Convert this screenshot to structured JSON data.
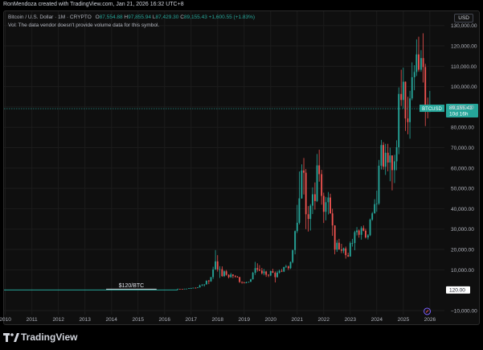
{
  "attribution": "RonMendoza created with TradingView.com, Jan 21, 2026 16:32 UTC+8",
  "legend": {
    "symbol": "Bitcoin / U.S. Dollar · 1M · CRYPTO",
    "open_label": "O",
    "open": "87,554.88",
    "high_label": "H",
    "high": "97,855.94",
    "low_label": "L",
    "low": "87,429.30",
    "close_label": "C",
    "close": "89,155.43",
    "change": "+1,600.55 (+1.83%)",
    "volume_note": "Vol: The data vendor doesn't provide volume data for this symbol."
  },
  "currency": "USD",
  "footer_brand": "TradingView",
  "colors": {
    "up": "#26a69a",
    "down": "#ef5350",
    "price_line": "#26a69a",
    "background": "#0f0f0f"
  },
  "chart_data": {
    "type": "candlestick",
    "symbol": "BTCUSD",
    "interval": "1M",
    "x_labels": [
      "2010",
      "2011",
      "2012",
      "2013",
      "2014",
      "2015",
      "2016",
      "2017",
      "2018",
      "2019",
      "2020",
      "2021",
      "2022",
      "2023",
      "2024",
      "2025",
      "2026"
    ],
    "y_ticks": [
      -10000,
      10000,
      20000,
      30000,
      40000,
      50000,
      60000,
      70000,
      80000,
      90000,
      100000,
      110000,
      120000,
      130000
    ],
    "y_tick_labels": [
      "−10,000.00",
      "10,000.00",
      "20,000.00",
      "30,000.00",
      "40,000.00",
      "50,000.00",
      "60,000.00",
      "70,000.00",
      "80,000.00",
      "90,000.00",
      "100,000.00",
      "110,000.00",
      "120,000.00",
      "130,000.00"
    ],
    "ylim": [
      -12000,
      137000
    ],
    "xlim": [
      2009.95,
      2026.55
    ],
    "last_price": 89155.43,
    "last_price_label": "BTCUSD",
    "last_price_text": "89,155.43",
    "countdown": "10d 16h",
    "marker_value": 120,
    "marker_text": "120.00",
    "annotation": {
      "text": "$120/BTC",
      "x": [
        2013.8,
        2015.7
      ],
      "y": 120
    },
    "candles": [
      {
        "t": 2016.5,
        "o": 640,
        "h": 780,
        "l": 620,
        "c": 650
      },
      {
        "t": 2016.58,
        "o": 650,
        "h": 670,
        "l": 560,
        "c": 620
      },
      {
        "t": 2016.67,
        "o": 620,
        "h": 640,
        "l": 600,
        "c": 610
      },
      {
        "t": 2016.75,
        "o": 610,
        "h": 720,
        "l": 600,
        "c": 700
      },
      {
        "t": 2016.83,
        "o": 700,
        "h": 750,
        "l": 690,
        "c": 740
      },
      {
        "t": 2016.92,
        "o": 740,
        "h": 980,
        "l": 730,
        "c": 960
      },
      {
        "t": 2017.0,
        "o": 960,
        "h": 1150,
        "l": 760,
        "c": 970
      },
      {
        "t": 2017.08,
        "o": 970,
        "h": 1200,
        "l": 920,
        "c": 1190
      },
      {
        "t": 2017.17,
        "o": 1190,
        "h": 1350,
        "l": 890,
        "c": 1080
      },
      {
        "t": 2017.25,
        "o": 1080,
        "h": 1450,
        "l": 1060,
        "c": 1350
      },
      {
        "t": 2017.33,
        "o": 1350,
        "h": 2700,
        "l": 1340,
        "c": 2300
      },
      {
        "t": 2017.42,
        "o": 2300,
        "h": 3000,
        "l": 2100,
        "c": 2480
      },
      {
        "t": 2017.5,
        "o": 2480,
        "h": 2900,
        "l": 1800,
        "c": 2870
      },
      {
        "t": 2017.58,
        "o": 2870,
        "h": 4700,
        "l": 2700,
        "c": 4700
      },
      {
        "t": 2017.67,
        "o": 4700,
        "h": 5000,
        "l": 2970,
        "c": 4340
      },
      {
        "t": 2017.75,
        "o": 4340,
        "h": 6400,
        "l": 4100,
        "c": 6450
      },
      {
        "t": 2017.83,
        "o": 6450,
        "h": 11500,
        "l": 5500,
        "c": 10200
      },
      {
        "t": 2017.92,
        "o": 10200,
        "h": 19700,
        "l": 10000,
        "c": 14150
      },
      {
        "t": 2018.0,
        "o": 14150,
        "h": 17200,
        "l": 9100,
        "c": 10200
      },
      {
        "t": 2018.08,
        "o": 10200,
        "h": 11800,
        "l": 6000,
        "c": 10300
      },
      {
        "t": 2018.17,
        "o": 10300,
        "h": 11700,
        "l": 6600,
        "c": 6920
      },
      {
        "t": 2018.25,
        "o": 6920,
        "h": 9700,
        "l": 6500,
        "c": 9250
      },
      {
        "t": 2018.33,
        "o": 9250,
        "h": 9900,
        "l": 7100,
        "c": 7500
      },
      {
        "t": 2018.42,
        "o": 7500,
        "h": 7800,
        "l": 5800,
        "c": 6400
      },
      {
        "t": 2018.5,
        "o": 6400,
        "h": 8500,
        "l": 6100,
        "c": 7730
      },
      {
        "t": 2018.58,
        "o": 7730,
        "h": 7800,
        "l": 5900,
        "c": 7030
      },
      {
        "t": 2018.67,
        "o": 7030,
        "h": 7400,
        "l": 6100,
        "c": 6630
      },
      {
        "t": 2018.75,
        "o": 6630,
        "h": 6900,
        "l": 6200,
        "c": 6370
      },
      {
        "t": 2018.83,
        "o": 6370,
        "h": 6600,
        "l": 3600,
        "c": 4000
      },
      {
        "t": 2018.92,
        "o": 4000,
        "h": 4300,
        "l": 3200,
        "c": 3700
      },
      {
        "t": 2019.0,
        "o": 3700,
        "h": 4100,
        "l": 3400,
        "c": 3440
      },
      {
        "t": 2019.08,
        "o": 3440,
        "h": 4200,
        "l": 3400,
        "c": 3820
      },
      {
        "t": 2019.17,
        "o": 3820,
        "h": 4100,
        "l": 3700,
        "c": 4100
      },
      {
        "t": 2019.25,
        "o": 4100,
        "h": 5600,
        "l": 4100,
        "c": 5300
      },
      {
        "t": 2019.33,
        "o": 5300,
        "h": 9000,
        "l": 5300,
        "c": 8550
      },
      {
        "t": 2019.42,
        "o": 8550,
        "h": 13900,
        "l": 7500,
        "c": 10800
      },
      {
        "t": 2019.5,
        "o": 10800,
        "h": 13200,
        "l": 9100,
        "c": 10100
      },
      {
        "t": 2019.58,
        "o": 10100,
        "h": 12300,
        "l": 9400,
        "c": 9600
      },
      {
        "t": 2019.67,
        "o": 9600,
        "h": 10900,
        "l": 7700,
        "c": 8300
      },
      {
        "t": 2019.75,
        "o": 8300,
        "h": 10400,
        "l": 7300,
        "c": 9150
      },
      {
        "t": 2019.83,
        "o": 9150,
        "h": 9500,
        "l": 6500,
        "c": 7550
      },
      {
        "t": 2019.92,
        "o": 7550,
        "h": 7800,
        "l": 6400,
        "c": 7190
      },
      {
        "t": 2020.0,
        "o": 7190,
        "h": 9600,
        "l": 6900,
        "c": 9350
      },
      {
        "t": 2020.08,
        "o": 9350,
        "h": 10500,
        "l": 8400,
        "c": 8550
      },
      {
        "t": 2020.17,
        "o": 8550,
        "h": 9200,
        "l": 3800,
        "c": 6400
      },
      {
        "t": 2020.25,
        "o": 6400,
        "h": 9500,
        "l": 6200,
        "c": 8620
      },
      {
        "t": 2020.33,
        "o": 8620,
        "h": 10100,
        "l": 8100,
        "c": 9450
      },
      {
        "t": 2020.42,
        "o": 9450,
        "h": 10400,
        "l": 8900,
        "c": 9140
      },
      {
        "t": 2020.5,
        "o": 9140,
        "h": 11500,
        "l": 8900,
        "c": 11350
      },
      {
        "t": 2020.58,
        "o": 11350,
        "h": 12500,
        "l": 10900,
        "c": 11650
      },
      {
        "t": 2020.67,
        "o": 11650,
        "h": 12100,
        "l": 9900,
        "c": 10780
      },
      {
        "t": 2020.75,
        "o": 10780,
        "h": 14100,
        "l": 10400,
        "c": 13800
      },
      {
        "t": 2020.83,
        "o": 13800,
        "h": 19900,
        "l": 13200,
        "c": 19700
      },
      {
        "t": 2020.92,
        "o": 19700,
        "h": 29300,
        "l": 17600,
        "c": 29000
      },
      {
        "t": 2021.0,
        "o": 29000,
        "h": 41900,
        "l": 28100,
        "c": 33100
      },
      {
        "t": 2021.08,
        "o": 33100,
        "h": 58300,
        "l": 32300,
        "c": 45100
      },
      {
        "t": 2021.17,
        "o": 45100,
        "h": 61800,
        "l": 44900,
        "c": 58800
      },
      {
        "t": 2021.25,
        "o": 58800,
        "h": 64900,
        "l": 47000,
        "c": 57700
      },
      {
        "t": 2021.33,
        "o": 57700,
        "h": 59500,
        "l": 30000,
        "c": 37300
      },
      {
        "t": 2021.42,
        "o": 37300,
        "h": 41300,
        "l": 28800,
        "c": 35000
      },
      {
        "t": 2021.5,
        "o": 35000,
        "h": 42300,
        "l": 29300,
        "c": 41500
      },
      {
        "t": 2021.58,
        "o": 41500,
        "h": 50500,
        "l": 37400,
        "c": 47100
      },
      {
        "t": 2021.67,
        "o": 47100,
        "h": 52900,
        "l": 39600,
        "c": 43800
      },
      {
        "t": 2021.75,
        "o": 43800,
        "h": 66900,
        "l": 43300,
        "c": 61300
      },
      {
        "t": 2021.83,
        "o": 61300,
        "h": 69000,
        "l": 53300,
        "c": 57000
      },
      {
        "t": 2021.92,
        "o": 57000,
        "h": 59100,
        "l": 42000,
        "c": 46300
      },
      {
        "t": 2022.0,
        "o": 46300,
        "h": 47900,
        "l": 33000,
        "c": 38500
      },
      {
        "t": 2022.08,
        "o": 38500,
        "h": 45800,
        "l": 34300,
        "c": 43200
      },
      {
        "t": 2022.17,
        "o": 43200,
        "h": 48200,
        "l": 37200,
        "c": 45500
      },
      {
        "t": 2022.25,
        "o": 45500,
        "h": 47400,
        "l": 37600,
        "c": 37700
      },
      {
        "t": 2022.33,
        "o": 37700,
        "h": 40000,
        "l": 26700,
        "c": 31800
      },
      {
        "t": 2022.42,
        "o": 31800,
        "h": 31900,
        "l": 17600,
        "c": 19900
      },
      {
        "t": 2022.5,
        "o": 19900,
        "h": 24600,
        "l": 18800,
        "c": 23300
      },
      {
        "t": 2022.58,
        "o": 23300,
        "h": 25200,
        "l": 19800,
        "c": 20000
      },
      {
        "t": 2022.67,
        "o": 20000,
        "h": 22800,
        "l": 18200,
        "c": 19400
      },
      {
        "t": 2022.75,
        "o": 19400,
        "h": 20900,
        "l": 18200,
        "c": 20500
      },
      {
        "t": 2022.83,
        "o": 20500,
        "h": 21400,
        "l": 15500,
        "c": 17200
      },
      {
        "t": 2022.92,
        "o": 17200,
        "h": 18400,
        "l": 16300,
        "c": 16550
      },
      {
        "t": 2023.0,
        "o": 16550,
        "h": 23900,
        "l": 16500,
        "c": 23100
      },
      {
        "t": 2023.08,
        "o": 23100,
        "h": 25200,
        "l": 21400,
        "c": 23150
      },
      {
        "t": 2023.17,
        "o": 23150,
        "h": 29200,
        "l": 19600,
        "c": 28500
      },
      {
        "t": 2023.25,
        "o": 28500,
        "h": 31000,
        "l": 26900,
        "c": 29300
      },
      {
        "t": 2023.33,
        "o": 29300,
        "h": 29800,
        "l": 25800,
        "c": 27200
      },
      {
        "t": 2023.42,
        "o": 27200,
        "h": 31400,
        "l": 24800,
        "c": 30500
      },
      {
        "t": 2023.5,
        "o": 30500,
        "h": 31800,
        "l": 28900,
        "c": 29200
      },
      {
        "t": 2023.58,
        "o": 29200,
        "h": 30200,
        "l": 25400,
        "c": 25900
      },
      {
        "t": 2023.67,
        "o": 25900,
        "h": 27500,
        "l": 24900,
        "c": 26960
      },
      {
        "t": 2023.75,
        "o": 26960,
        "h": 35200,
        "l": 26600,
        "c": 34650
      },
      {
        "t": 2023.83,
        "o": 34650,
        "h": 38400,
        "l": 34100,
        "c": 37720
      },
      {
        "t": 2023.92,
        "o": 37720,
        "h": 44700,
        "l": 37600,
        "c": 42280
      },
      {
        "t": 2024.0,
        "o": 42280,
        "h": 48900,
        "l": 38500,
        "c": 42580
      },
      {
        "t": 2024.08,
        "o": 42580,
        "h": 64000,
        "l": 41900,
        "c": 61130
      },
      {
        "t": 2024.17,
        "o": 61130,
        "h": 73800,
        "l": 59300,
        "c": 71300
      },
      {
        "t": 2024.25,
        "o": 71300,
        "h": 72700,
        "l": 59200,
        "c": 60640
      },
      {
        "t": 2024.33,
        "o": 60640,
        "h": 71900,
        "l": 56600,
        "c": 67500
      },
      {
        "t": 2024.42,
        "o": 67500,
        "h": 71900,
        "l": 58400,
        "c": 62700
      },
      {
        "t": 2024.5,
        "o": 62700,
        "h": 70000,
        "l": 53500,
        "c": 66200
      },
      {
        "t": 2024.58,
        "o": 66200,
        "h": 65600,
        "l": 49000,
        "c": 58970
      },
      {
        "t": 2024.67,
        "o": 58970,
        "h": 66500,
        "l": 52600,
        "c": 63300
      },
      {
        "t": 2024.75,
        "o": 63300,
        "h": 73600,
        "l": 58900,
        "c": 70200
      },
      {
        "t": 2024.83,
        "o": 70200,
        "h": 99600,
        "l": 66800,
        "c": 96400
      },
      {
        "t": 2024.92,
        "o": 96400,
        "h": 108300,
        "l": 90500,
        "c": 93430
      },
      {
        "t": 2025.0,
        "o": 93430,
        "h": 109300,
        "l": 89200,
        "c": 102400
      },
      {
        "t": 2025.08,
        "o": 102400,
        "h": 102500,
        "l": 78200,
        "c": 84350
      },
      {
        "t": 2025.17,
        "o": 84350,
        "h": 95000,
        "l": 76600,
        "c": 82550
      },
      {
        "t": 2025.25,
        "o": 82550,
        "h": 97900,
        "l": 74400,
        "c": 94200
      },
      {
        "t": 2025.33,
        "o": 94200,
        "h": 111900,
        "l": 93300,
        "c": 104600
      },
      {
        "t": 2025.42,
        "o": 104600,
        "h": 110500,
        "l": 98200,
        "c": 107200
      },
      {
        "t": 2025.5,
        "o": 107200,
        "h": 123200,
        "l": 105200,
        "c": 115800
      },
      {
        "t": 2025.58,
        "o": 115800,
        "h": 124500,
        "l": 107300,
        "c": 108300
      },
      {
        "t": 2025.67,
        "o": 108300,
        "h": 117900,
        "l": 107300,
        "c": 114000
      },
      {
        "t": 2025.75,
        "o": 114000,
        "h": 126200,
        "l": 102000,
        "c": 109600
      },
      {
        "t": 2025.83,
        "o": 109600,
        "h": 111200,
        "l": 80600,
        "c": 90400
      },
      {
        "t": 2025.92,
        "o": 90400,
        "h": 94600,
        "l": 84400,
        "c": 87554.88
      },
      {
        "t": 2026.0,
        "o": 87554.88,
        "h": 97855.94,
        "l": 87429.3,
        "c": 89155.43
      }
    ]
  }
}
